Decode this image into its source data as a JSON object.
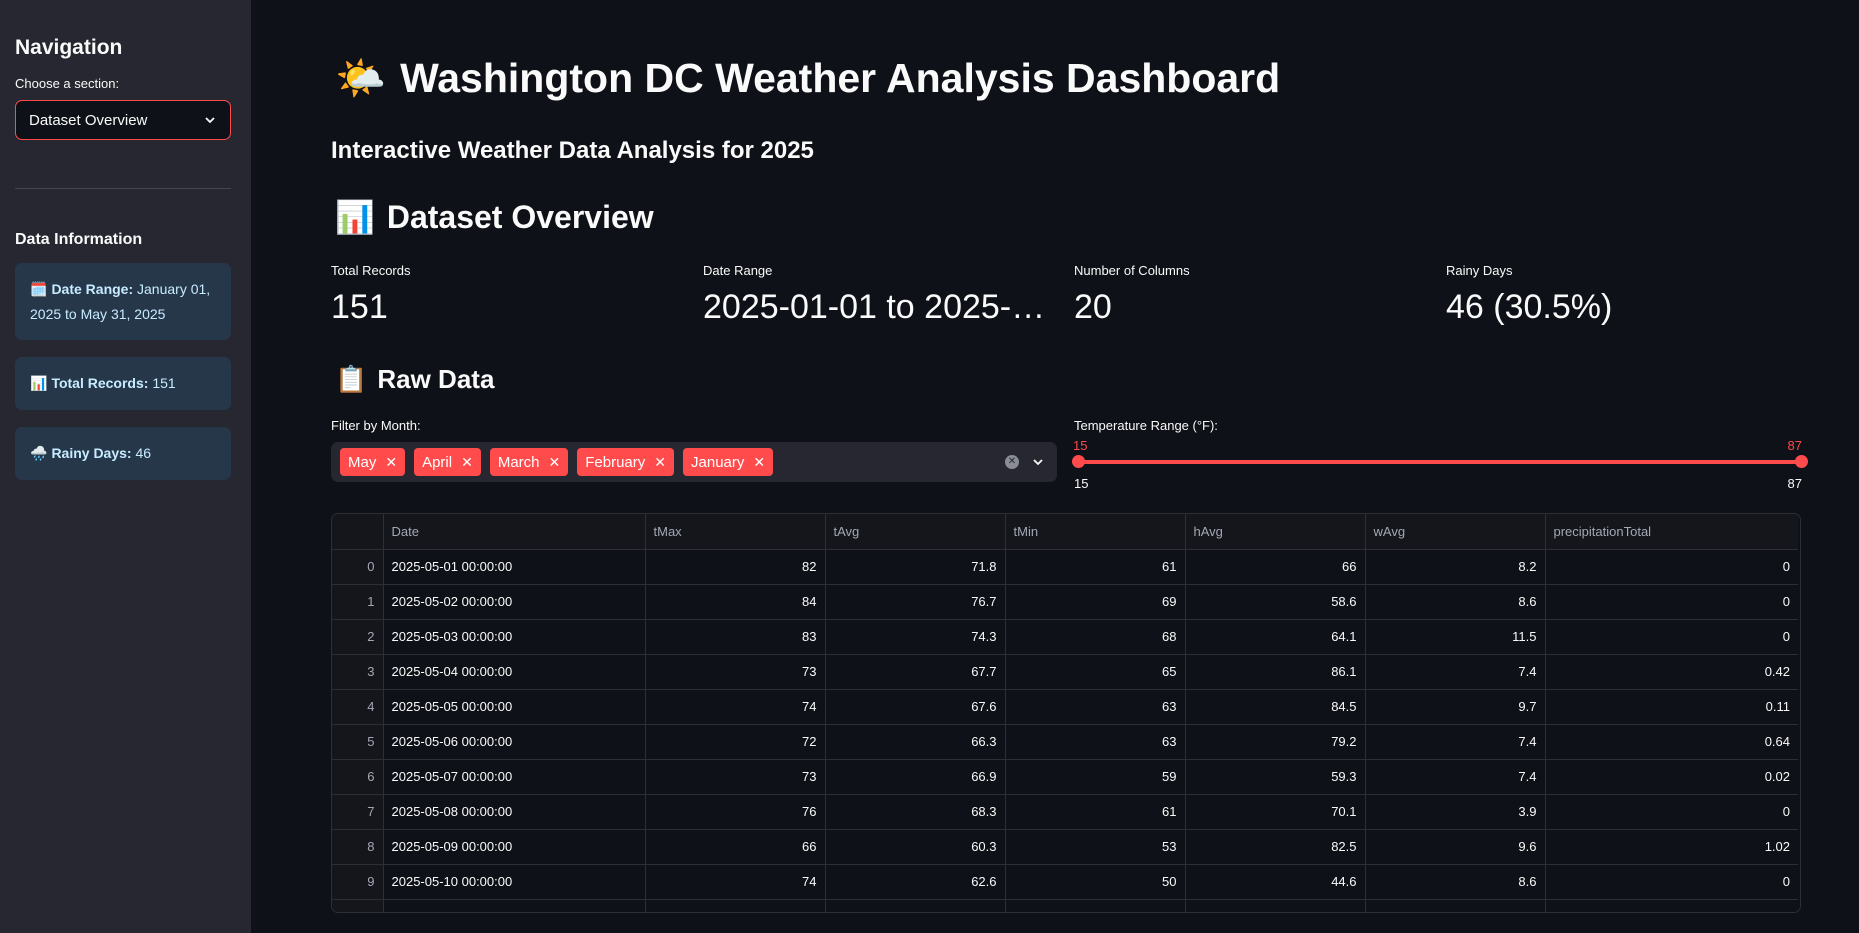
{
  "sidebar": {
    "title": "Navigation",
    "select_label": "Choose a section:",
    "select_value": "Dataset Overview",
    "data_info_title": "Data Information",
    "info": [
      {
        "icon": "🗓️",
        "label": "Date Range:",
        "value": "January 01, 2025 to May 31, 2025"
      },
      {
        "icon": "📊",
        "label": "Total Records:",
        "value": "151"
      },
      {
        "icon": "🌧️",
        "label": "Rainy Days:",
        "value": "46"
      }
    ]
  },
  "header": {
    "emoji": "🌤️",
    "title": "Washington DC Weather Analysis Dashboard",
    "subtitle": "Interactive Weather Data Analysis for 2025"
  },
  "overview": {
    "emoji": "📊",
    "title": "Dataset Overview",
    "metrics": [
      {
        "label": "Total Records",
        "value": "151"
      },
      {
        "label": "Date Range",
        "value": "2025-01-01 to 2025-0…"
      },
      {
        "label": "Number of Columns",
        "value": "20"
      },
      {
        "label": "Rainy Days",
        "value": "46 (30.5%)"
      }
    ]
  },
  "raw": {
    "emoji": "📋",
    "title": "Raw Data",
    "month_filter_label": "Filter by Month:",
    "months": [
      "May",
      "April",
      "March",
      "February",
      "January"
    ],
    "temp_label": "Temperature Range (°F):",
    "temp_min": "15",
    "temp_max": "87",
    "temp_lo_value": "15",
    "temp_hi_value": "87"
  },
  "table": {
    "columns": [
      "",
      "Date",
      "tMax",
      "tAvg",
      "tMin",
      "hAvg",
      "wAvg",
      "precipitationTotal"
    ],
    "rows": [
      [
        "0",
        "2025-05-01 00:00:00",
        "82",
        "71.8",
        "61",
        "66",
        "8.2",
        "0"
      ],
      [
        "1",
        "2025-05-02 00:00:00",
        "84",
        "76.7",
        "69",
        "58.6",
        "8.6",
        "0"
      ],
      [
        "2",
        "2025-05-03 00:00:00",
        "83",
        "74.3",
        "68",
        "64.1",
        "11.5",
        "0"
      ],
      [
        "3",
        "2025-05-04 00:00:00",
        "73",
        "67.7",
        "65",
        "86.1",
        "7.4",
        "0.42"
      ],
      [
        "4",
        "2025-05-05 00:00:00",
        "74",
        "67.6",
        "63",
        "84.5",
        "9.7",
        "0.11"
      ],
      [
        "5",
        "2025-05-06 00:00:00",
        "72",
        "66.3",
        "63",
        "79.2",
        "7.4",
        "0.64"
      ],
      [
        "6",
        "2025-05-07 00:00:00",
        "73",
        "66.9",
        "59",
        "59.3",
        "7.4",
        "0.02"
      ],
      [
        "7",
        "2025-05-08 00:00:00",
        "76",
        "68.3",
        "61",
        "70.1",
        "3.9",
        "0"
      ],
      [
        "8",
        "2025-05-09 00:00:00",
        "66",
        "60.3",
        "53",
        "82.5",
        "9.6",
        "1.02"
      ],
      [
        "9",
        "2025-05-10 00:00:00",
        "74",
        "62.6",
        "50",
        "44.6",
        "8.6",
        "0"
      ],
      [
        "",
        "",
        "",
        "",
        "",
        "",
        "",
        ""
      ]
    ]
  },
  "colors": {
    "accent": "#ff4b4b",
    "background": "#0e1117",
    "sidebar": "#262730",
    "info_box": "#26374a"
  }
}
